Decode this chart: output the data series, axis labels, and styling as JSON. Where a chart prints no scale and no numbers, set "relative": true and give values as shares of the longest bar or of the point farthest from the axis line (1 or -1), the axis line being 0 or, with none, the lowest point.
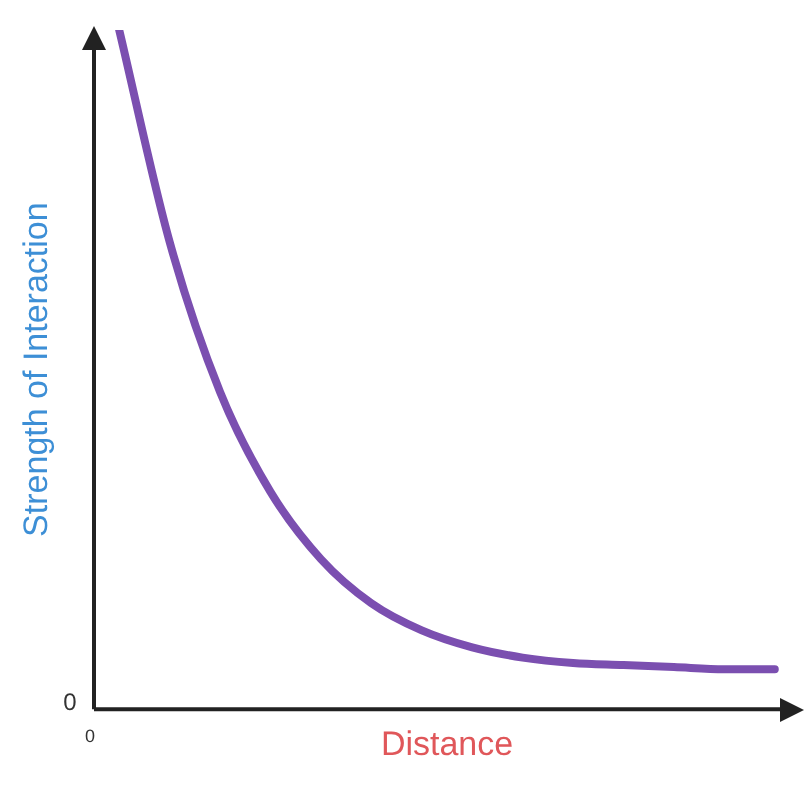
{
  "chart_data": {
    "type": "line",
    "xlabel": "Distance",
    "ylabel": "Strength of Interaction",
    "relative": true,
    "categories": [
      null,
      null,
      null,
      null,
      null,
      null,
      null,
      null,
      null,
      null,
      null,
      null,
      null,
      null
    ],
    "series": [
      {
        "color": "#7b4fb0",
        "values": [
          1,
          0.688,
          0.467,
          0.32,
          0.221,
          0.156,
          0.116,
          0.091,
          0.076,
          0.068,
          0.065,
          0.062,
          0.059,
          0.059
        ]
      }
    ],
    "annotations": [
      "0",
      "0"
    ],
    "grid": false,
    "legend": false,
    "marker": "none",
    "line_style": "solid"
  }
}
